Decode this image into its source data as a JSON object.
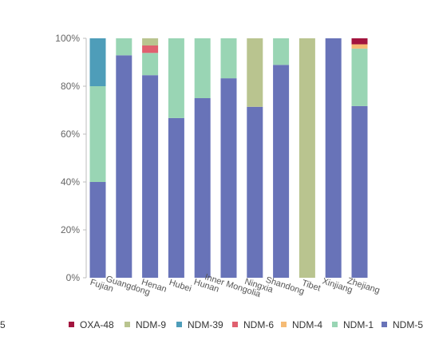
{
  "chart_data": {
    "type": "bar",
    "stacked": true,
    "normalized": true,
    "categories": [
      "Fujian",
      "Guangdong",
      "Henan",
      "Hubei",
      "Hunan",
      "Inner Mongolia",
      "Ningxia",
      "Shandong",
      "Tibet",
      "Xinjiang",
      "Zhejiang"
    ],
    "ylim": [
      0,
      100
    ],
    "yticks": [
      "0%",
      "20%",
      "40%",
      "60%",
      "80%",
      "100%"
    ],
    "grid": false,
    "legend_position": "bottom",
    "legend_truncated_label": "5",
    "series": [
      {
        "name": "NDM-5",
        "color": "#6873b8",
        "values": [
          40,
          92.9,
          84.6,
          66.7,
          75,
          83.3,
          71.4,
          88.9,
          0,
          100,
          71.7
        ]
      },
      {
        "name": "NDM-1",
        "color": "#99d5b4",
        "values": [
          40,
          7.1,
          9.3,
          33.3,
          25,
          16.7,
          0,
          11.1,
          0,
          0,
          24
        ]
      },
      {
        "name": "NDM-4",
        "color": "#f5bb75",
        "values": [
          0,
          0,
          0,
          0,
          0,
          0,
          0,
          0,
          0,
          0,
          1.8
        ]
      },
      {
        "name": "NDM-6",
        "color": "#e0606f",
        "values": [
          0,
          0,
          3.1,
          0,
          0,
          0,
          0,
          0,
          0,
          0,
          0
        ]
      },
      {
        "name": "NDM-39",
        "color": "#4e9db9",
        "values": [
          20,
          0,
          0,
          0,
          0,
          0,
          0,
          0,
          0,
          0,
          0
        ]
      },
      {
        "name": "NDM-9",
        "color": "#b9c48f",
        "values": [
          0,
          0,
          3,
          0,
          0,
          0,
          28.6,
          0,
          100,
          0,
          0
        ]
      },
      {
        "name": "OXA-48",
        "color": "#a3143e",
        "values": [
          0,
          0,
          0,
          0,
          0,
          0,
          0,
          0,
          0,
          0,
          2.5
        ]
      }
    ],
    "legend_order": [
      "OXA-48",
      "NDM-9",
      "NDM-39",
      "NDM-6",
      "NDM-4",
      "NDM-1",
      "NDM-5"
    ]
  }
}
